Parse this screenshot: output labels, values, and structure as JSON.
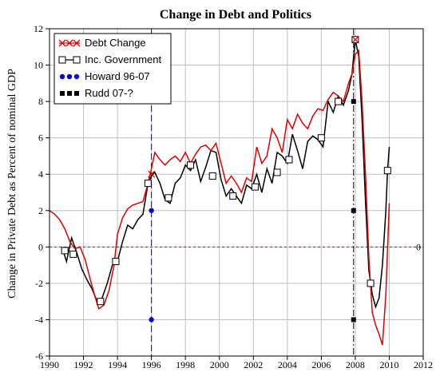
{
  "chart_data": {
    "type": "line",
    "title": "Change in Debt and Politics",
    "xlabel": "",
    "ylabel": "Change in Private Debt as Percent of nominal GDP",
    "xlim": [
      1990,
      2012
    ],
    "ylim": [
      -6,
      12
    ],
    "x_ticks": [
      "1990",
      "1992",
      "1994",
      "1996",
      "1998",
      "2000",
      "2002",
      "2004",
      "2006",
      "2008",
      "2010",
      "2012"
    ],
    "y_ticks": [
      "-6",
      "-4",
      "-2",
      "0",
      "2",
      "4",
      "6",
      "8",
      "10",
      "12"
    ],
    "grid": true,
    "legend_position": "top-left",
    "zero_line_label": "0",
    "series": [
      {
        "name": "Debt Change",
        "color": "#e00000",
        "marker": "x",
        "x": [
          1990.0,
          1990.3,
          1990.6,
          1990.9,
          1991.2,
          1991.5,
          1991.8,
          1992.1,
          1992.4,
          1992.7,
          1992.9,
          1993.2,
          1993.5,
          1993.8,
          1994.0,
          1994.3,
          1994.6,
          1994.9,
          1995.2,
          1995.5,
          1995.8,
          1996.0,
          1996.2,
          1996.5,
          1996.8,
          1997.1,
          1997.4,
          1997.7,
          1998.0,
          1998.3,
          1998.6,
          1998.9,
          1999.2,
          1999.5,
          1999.8,
          2000.1,
          2000.4,
          2000.7,
          2001.0,
          2001.3,
          2001.6,
          2001.9,
          2002.2,
          2002.5,
          2002.8,
          2003.1,
          2003.4,
          2003.7,
          2004.0,
          2004.3,
          2004.6,
          2004.9,
          2005.2,
          2005.5,
          2005.8,
          2006.1,
          2006.4,
          2006.7,
          2007.0,
          2007.3,
          2007.6,
          2007.8,
          2008.0,
          2008.2,
          2008.4,
          2008.6,
          2008.8,
          2009.0,
          2009.2,
          2009.4,
          2009.6,
          2009.8,
          2010.0
        ],
        "y": [
          2.0,
          1.8,
          1.5,
          1.0,
          0.3,
          -0.1,
          0.0,
          -0.7,
          -1.8,
          -2.8,
          -3.4,
          -3.2,
          -2.4,
          -1.0,
          0.7,
          1.6,
          2.1,
          2.3,
          2.4,
          2.5,
          3.5,
          4.3,
          5.2,
          4.8,
          4.5,
          4.8,
          5.0,
          4.7,
          5.2,
          4.6,
          5.1,
          5.5,
          5.6,
          5.3,
          5.7,
          4.6,
          3.5,
          3.9,
          3.5,
          3.0,
          3.8,
          3.6,
          5.5,
          4.6,
          5.0,
          6.5,
          6.0,
          5.2,
          7.0,
          6.5,
          7.3,
          6.8,
          6.5,
          7.2,
          7.6,
          7.5,
          8.1,
          8.5,
          8.3,
          8.0,
          9.0,
          9.5,
          10.6,
          10.8,
          8.0,
          4.0,
          -0.6,
          -3.6,
          -4.3,
          -4.8,
          -5.4,
          -2.6,
          2.4
        ]
      },
      {
        "name": "Inc. Government",
        "color": "#000000",
        "marker": "square",
        "x": [
          1990.8,
          1991.0,
          1991.3,
          1991.6,
          1991.9,
          1992.2,
          1992.5,
          1992.8,
          1993.1,
          1993.4,
          1993.7,
          1994.0,
          1994.3,
          1994.6,
          1994.9,
          1995.2,
          1995.5,
          1995.8,
          1996.0,
          1996.2,
          1996.5,
          1996.8,
          1997.1,
          1997.4,
          1997.7,
          1998.0,
          1998.3,
          1998.6,
          1998.9,
          1999.2,
          1999.5,
          1999.8,
          2000.1,
          2000.4,
          2000.7,
          2001.0,
          2001.3,
          2001.6,
          2001.9,
          2002.2,
          2002.5,
          2002.8,
          2003.1,
          2003.4,
          2003.7,
          2004.0,
          2004.3,
          2004.6,
          2004.9,
          2005.2,
          2005.5,
          2005.8,
          2006.1,
          2006.4,
          2006.7,
          2007.0,
          2007.3,
          2007.6,
          2007.8,
          2008.0,
          2008.2,
          2008.4,
          2008.6,
          2008.8,
          2009.0,
          2009.2,
          2009.4,
          2009.6,
          2009.8,
          2009.9,
          2010.0
        ],
        "y": [
          -0.2,
          -0.8,
          0.5,
          -0.3,
          -1.2,
          -1.8,
          -2.3,
          -3.0,
          -2.8,
          -2.0,
          -1.0,
          -0.8,
          0.3,
          1.2,
          1.0,
          1.5,
          1.8,
          3.5,
          3.9,
          4.1,
          3.5,
          2.6,
          2.4,
          3.5,
          3.8,
          4.5,
          4.2,
          4.8,
          3.6,
          4.4,
          5.3,
          5.2,
          3.7,
          2.8,
          3.2,
          2.8,
          2.4,
          3.4,
          3.2,
          4.0,
          3.0,
          4.3,
          3.5,
          5.2,
          5.0,
          4.6,
          6.2,
          5.3,
          4.3,
          5.8,
          6.1,
          5.9,
          5.5,
          8.0,
          7.4,
          8.3,
          7.8,
          8.6,
          9.5,
          11.4,
          10.5,
          7.0,
          2.5,
          -1.3,
          -2.6,
          -3.3,
          -2.8,
          -1.0,
          2.0,
          4.2,
          5.5
        ]
      },
      {
        "name": "Howard 96-07",
        "color": "#0000e0",
        "marker": "circle",
        "x": [
          1996.0,
          1996.0,
          1996.0
        ],
        "y": [
          8,
          2,
          -4
        ]
      },
      {
        "name": "Rudd 07-?",
        "color": "#000000",
        "marker": "filled-square",
        "x": [
          2007.9,
          2007.9,
          2007.9
        ],
        "y": [
          8,
          2,
          -4
        ]
      }
    ],
    "marked_points": {
      "Debt Change": [
        [
          1996.0,
          4.0
        ],
        [
          2008.0,
          11.4
        ]
      ],
      "Inc. Government": [
        [
          1990.9,
          -0.2
        ],
        [
          1991.4,
          -0.4
        ],
        [
          1993.0,
          -3.0
        ],
        [
          1993.9,
          -0.8
        ],
        [
          1995.8,
          3.5
        ],
        [
          1997.0,
          2.7
        ],
        [
          1998.3,
          4.5
        ],
        [
          1999.6,
          3.9
        ],
        [
          2000.8,
          2.8
        ],
        [
          2002.1,
          3.3
        ],
        [
          2003.4,
          4.1
        ],
        [
          2004.1,
          4.8
        ],
        [
          2006.0,
          6.0
        ],
        [
          2007.0,
          8.0
        ],
        [
          2008.0,
          11.4
        ],
        [
          2008.9,
          -2.0
        ],
        [
          2009.9,
          4.2
        ]
      ]
    }
  }
}
